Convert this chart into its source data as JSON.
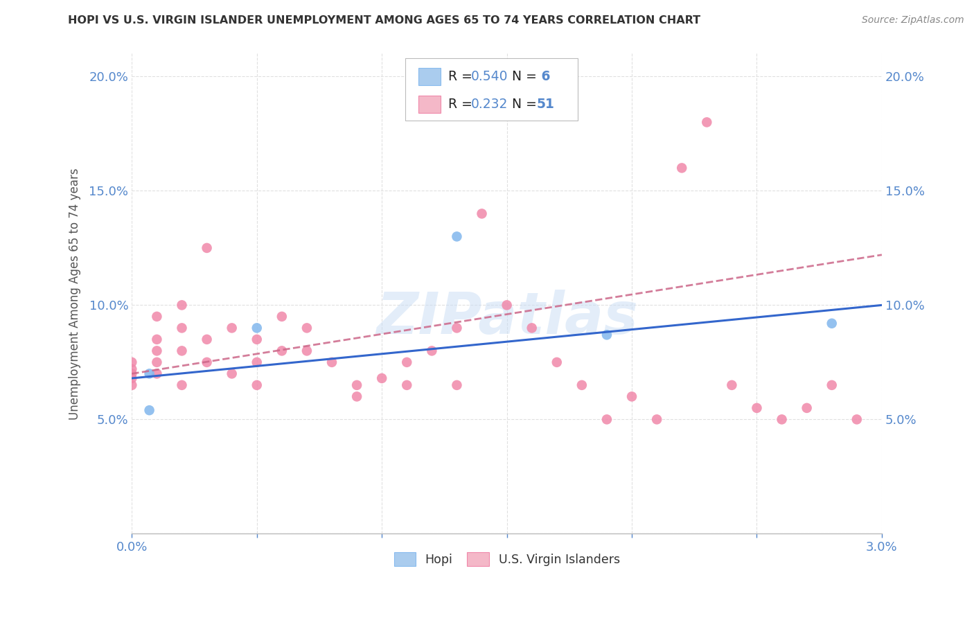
{
  "title": "HOPI VS U.S. VIRGIN ISLANDER UNEMPLOYMENT AMONG AGES 65 TO 74 YEARS CORRELATION CHART",
  "source": "Source: ZipAtlas.com",
  "ylabel": "Unemployment Among Ages 65 to 74 years",
  "xlim": [
    0.0,
    0.03
  ],
  "ylim": [
    0.0,
    0.21
  ],
  "xticks": [
    0.0,
    0.005,
    0.01,
    0.015,
    0.02,
    0.025,
    0.03
  ],
  "xtick_labels": [
    "0.0%",
    "",
    "",
    "",
    "",
    "",
    "3.0%"
  ],
  "ytick_positions": [
    0.0,
    0.05,
    0.1,
    0.15,
    0.2
  ],
  "ytick_labels": [
    "",
    "5.0%",
    "10.0%",
    "15.0%",
    "20.0%"
  ],
  "right_ytick_positions": [
    0.05,
    0.1,
    0.15,
    0.2
  ],
  "right_ytick_labels": [
    "5.0%",
    "10.0%",
    "15.0%",
    "20.0%"
  ],
  "hopi_scatter_color": "#88bbee",
  "vi_scatter_color": "#f088aa",
  "hopi_legend_color": "#aaccee",
  "vi_legend_color": "#f4b8c8",
  "hopi_line_color": "#3366cc",
  "vi_line_color": "#cc6688",
  "hopi_R": 0.54,
  "hopi_N": 6,
  "vi_R": 0.232,
  "vi_N": 51,
  "hopi_x": [
    0.0007,
    0.0007,
    0.005,
    0.013,
    0.019,
    0.028
  ],
  "hopi_y": [
    0.07,
    0.054,
    0.09,
    0.13,
    0.087,
    0.092
  ],
  "vi_x": [
    0.0,
    0.0,
    0.0,
    0.0,
    0.0,
    0.001,
    0.001,
    0.001,
    0.001,
    0.001,
    0.002,
    0.002,
    0.002,
    0.002,
    0.003,
    0.003,
    0.003,
    0.004,
    0.004,
    0.005,
    0.005,
    0.005,
    0.006,
    0.006,
    0.007,
    0.007,
    0.008,
    0.009,
    0.009,
    0.01,
    0.011,
    0.011,
    0.012,
    0.013,
    0.013,
    0.014,
    0.015,
    0.016,
    0.017,
    0.018,
    0.019,
    0.02,
    0.021,
    0.022,
    0.023,
    0.024,
    0.025,
    0.026,
    0.027,
    0.028,
    0.029
  ],
  "vi_y": [
    0.07,
    0.068,
    0.065,
    0.072,
    0.075,
    0.095,
    0.085,
    0.08,
    0.075,
    0.07,
    0.1,
    0.09,
    0.08,
    0.065,
    0.125,
    0.085,
    0.075,
    0.09,
    0.07,
    0.085,
    0.075,
    0.065,
    0.095,
    0.08,
    0.09,
    0.08,
    0.075,
    0.065,
    0.06,
    0.068,
    0.075,
    0.065,
    0.08,
    0.09,
    0.065,
    0.14,
    0.1,
    0.09,
    0.075,
    0.065,
    0.05,
    0.06,
    0.05,
    0.16,
    0.18,
    0.065,
    0.055,
    0.05,
    0.055,
    0.065,
    0.05
  ],
  "hopi_trendline_x": [
    0.0,
    0.03
  ],
  "hopi_trendline_y": [
    0.068,
    0.1
  ],
  "vi_trendline_x": [
    0.0,
    0.03
  ],
  "vi_trendline_y": [
    0.07,
    0.122
  ],
  "watermark_text": "ZIPatlas",
  "watermark_color": "#c8ddf5",
  "watermark_alpha": 0.5,
  "background_color": "#ffffff",
  "grid_color": "#e0e0e0",
  "tick_color": "#5588cc",
  "title_color": "#333333",
  "source_color": "#888888",
  "ylabel_color": "#555555"
}
